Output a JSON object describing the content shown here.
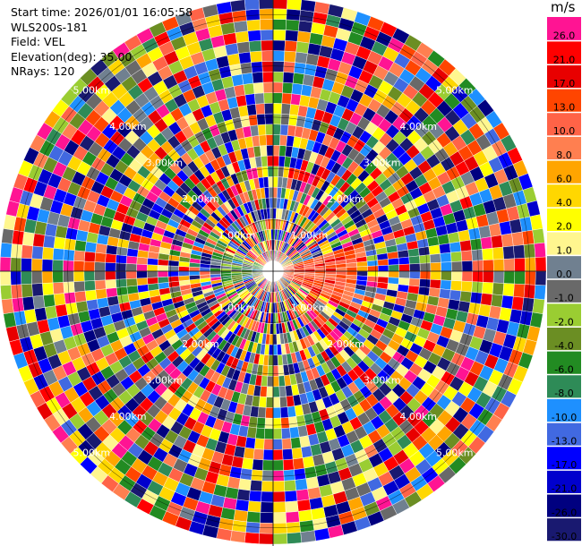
{
  "info": {
    "start_time": "Start time: 2026/01/01 16:05:58",
    "instrument": "WLS200s-181",
    "field": "Field: VEL",
    "elevation": "Elevation(deg): 35.00",
    "nrays": "NRays: 120"
  },
  "colorbar": {
    "unit": "m/s",
    "bins": [
      {
        "label": "26.0",
        "color": "#ff1493"
      },
      {
        "label": "21.0",
        "color": "#ff0000"
      },
      {
        "label": "17.0",
        "color": "#e80000"
      },
      {
        "label": "13.0",
        "color": "#ff4500"
      },
      {
        "label": "10.0",
        "color": "#ff6347"
      },
      {
        "label": "8.0",
        "color": "#ff7f50"
      },
      {
        "label": "6.0",
        "color": "#ffa500"
      },
      {
        "label": "4.0",
        "color": "#ffd700"
      },
      {
        "label": "2.0",
        "color": "#ffff00"
      },
      {
        "label": "1.0",
        "color": "#fff68f"
      },
      {
        "label": "0.0",
        "color": "#708090"
      },
      {
        "label": "-1.0",
        "color": "#696969"
      },
      {
        "label": "-2.0",
        "color": "#9acd32"
      },
      {
        "label": "-4.0",
        "color": "#6b8e23"
      },
      {
        "label": "-6.0",
        "color": "#228b22"
      },
      {
        "label": "-8.0",
        "color": "#2e8b57"
      },
      {
        "label": "-10.0",
        "color": "#1e90ff"
      },
      {
        "label": "-13.0",
        "color": "#4169e1"
      },
      {
        "label": "-17.0",
        "color": "#0000ff"
      },
      {
        "label": "-21.0",
        "color": "#0000cd"
      },
      {
        "label": "-26.0",
        "color": "#000080"
      },
      {
        "label": "-30.0",
        "color": "#191970"
      }
    ]
  },
  "chart_data": {
    "type": "heatmap",
    "projection": "polar",
    "field": "VEL",
    "units": "m/s",
    "nrays": 120,
    "max_range_km": 5.0,
    "range_rings_km": [
      1.0,
      2.0,
      3.0,
      4.0,
      5.0
    ],
    "ring_labels": [
      "1.00km",
      "2.00km",
      "3.00km",
      "4.00km",
      "5.00km"
    ],
    "cross_lines": true
  }
}
